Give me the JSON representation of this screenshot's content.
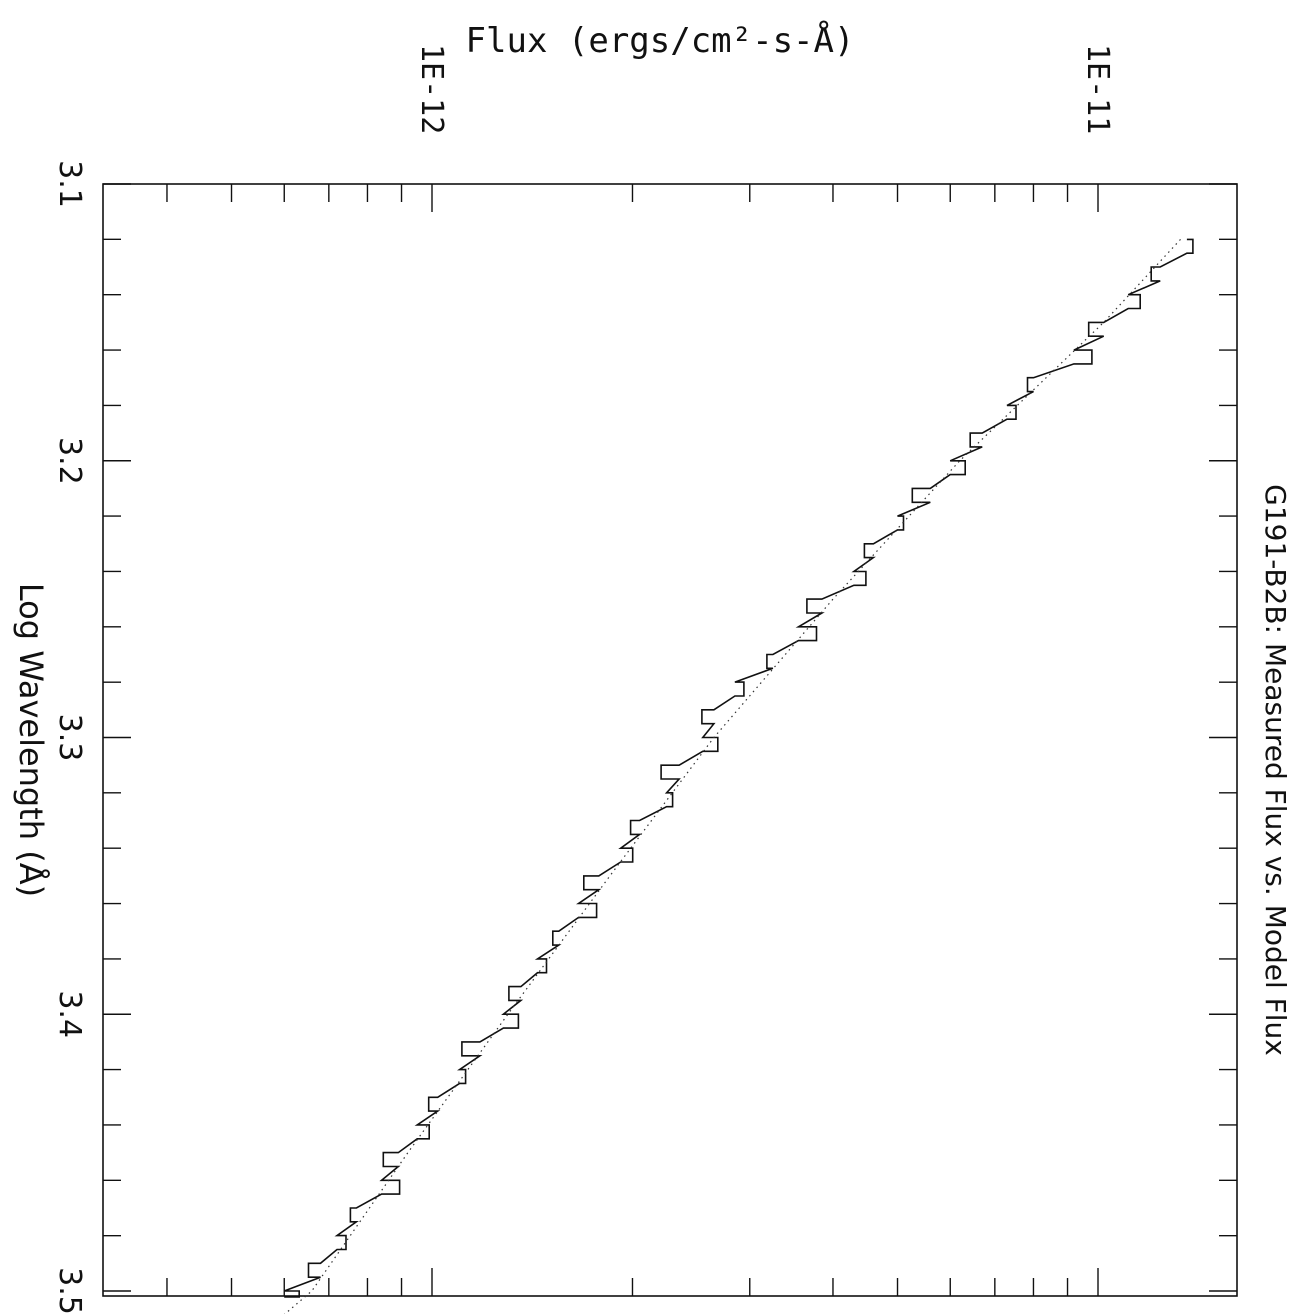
{
  "chart_data": {
    "type": "line",
    "title": "G191-B2B: Measured Flux vs. Model Flux",
    "xlabel": "Log Wavelength (Å)",
    "ylabel": "Flux (ergs/cm²-s-Å)",
    "xlim": [
      3.1,
      3.5
    ],
    "ylim_log10": [
      -12.5,
      -10.8
    ],
    "y_scale": "log",
    "grid": false,
    "orientation": "rotated-90-clockwise",
    "x_ticks": [
      {
        "value": 3.1,
        "label": "3.1"
      },
      {
        "value": 3.2,
        "label": "3.2"
      },
      {
        "value": 3.3,
        "label": "3.3"
      },
      {
        "value": 3.4,
        "label": "3.4"
      },
      {
        "value": 3.5,
        "label": "3.5"
      }
    ],
    "y_ticks": [
      {
        "value": 1e-12,
        "label": "1E-12"
      },
      {
        "value": 1e-11,
        "label": "1E-11"
      }
    ],
    "series": [
      {
        "style": "solid-histogram",
        "x": [
          3.12,
          3.13,
          3.14,
          3.15,
          3.16,
          3.17,
          3.18,
          3.19,
          3.2,
          3.21,
          3.22,
          3.23,
          3.24,
          3.25,
          3.26,
          3.27,
          3.28,
          3.29,
          3.3,
          3.31,
          3.32,
          3.33,
          3.34,
          3.35,
          3.36,
          3.37,
          3.38,
          3.39,
          3.4,
          3.41,
          3.42,
          3.43,
          3.44,
          3.45,
          3.46,
          3.47,
          3.48,
          3.49,
          3.5
        ],
        "y": [
          1.36e-11,
          1.24e-11,
          1.11e-11,
          1.02e-11,
          9.2e-12,
          8e-12,
          7.3e-12,
          6.7e-12,
          6e-12,
          5.6e-12,
          5e-12,
          4.6e-12,
          4.3e-12,
          3.85e-12,
          3.55e-12,
          3.25e-12,
          2.85e-12,
          2.65e-12,
          2.55e-12,
          2.35e-12,
          2.25e-12,
          2.05e-12,
          1.92e-12,
          1.78e-12,
          1.66e-12,
          1.55e-12,
          1.44e-12,
          1.36e-12,
          1.28e-12,
          1.18e-12,
          1.1e-12,
          1.02e-12,
          9.5e-13,
          8.9e-13,
          8.4e-13,
          7.7e-13,
          7.2e-13,
          6.8e-13,
          6e-13
        ]
      },
      {
        "style": "dotted",
        "x": [
          3.12,
          3.15,
          3.2,
          3.25,
          3.3,
          3.35,
          3.4,
          3.45,
          3.5,
          3.51
        ],
        "y": [
          1.33e-11,
          1.02e-11,
          6.2e-12,
          4e-12,
          2.65e-12,
          1.85e-12,
          1.3e-12,
          9.2e-13,
          6.6e-13,
          5.9e-13
        ]
      }
    ]
  }
}
